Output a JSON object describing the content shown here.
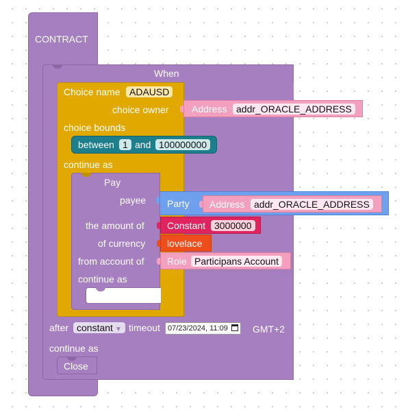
{
  "contract": {
    "label": "CONTRACT"
  },
  "when": {
    "label": "When",
    "choice": {
      "name_label": "Choice name",
      "name_value": "ADAUSD",
      "owner_label": "choice owner",
      "owner": {
        "type_label": "Address",
        "value": "addr_ORACLE_ADDRESS"
      },
      "bounds_label": "choice bounds",
      "bound": {
        "between_label": "between",
        "low": "1",
        "and_label": "and",
        "high": "100000000"
      },
      "continue_label": "continue as",
      "pay": {
        "label": "Pay",
        "payee_label": "payee",
        "payee": {
          "party_label": "Party",
          "address_label": "Address",
          "address_value": "addr_ORACLE_ADDRESS"
        },
        "amount_label": "the amount of",
        "amount": {
          "type_label": "Constant",
          "value": "3000000"
        },
        "currency_label": "of currency",
        "currency_value": "lovelace",
        "from_label": "from account of",
        "from": {
          "type_label": "Role",
          "value": "Participans Account"
        },
        "continue_label": "continue as"
      }
    },
    "after_label": "after",
    "timeout_type": "constant",
    "timeout_label": "timeout",
    "timeout_value": "07/23/2024, 11:09",
    "timezone": "GMT+2",
    "continue_label": "continue as",
    "close_label": "Close"
  },
  "colors": {
    "contract": "#a57fbf",
    "choice": "#e1a800",
    "bound": "#1e7f8c",
    "address": "#f3a0bf",
    "party": "#6ea0ee",
    "constant": "#e0245f",
    "token": "#ee4d1c"
  },
  "icons": {
    "timeout_dropdown": "triangle-down-icon",
    "calendar": "calendar-icon"
  }
}
